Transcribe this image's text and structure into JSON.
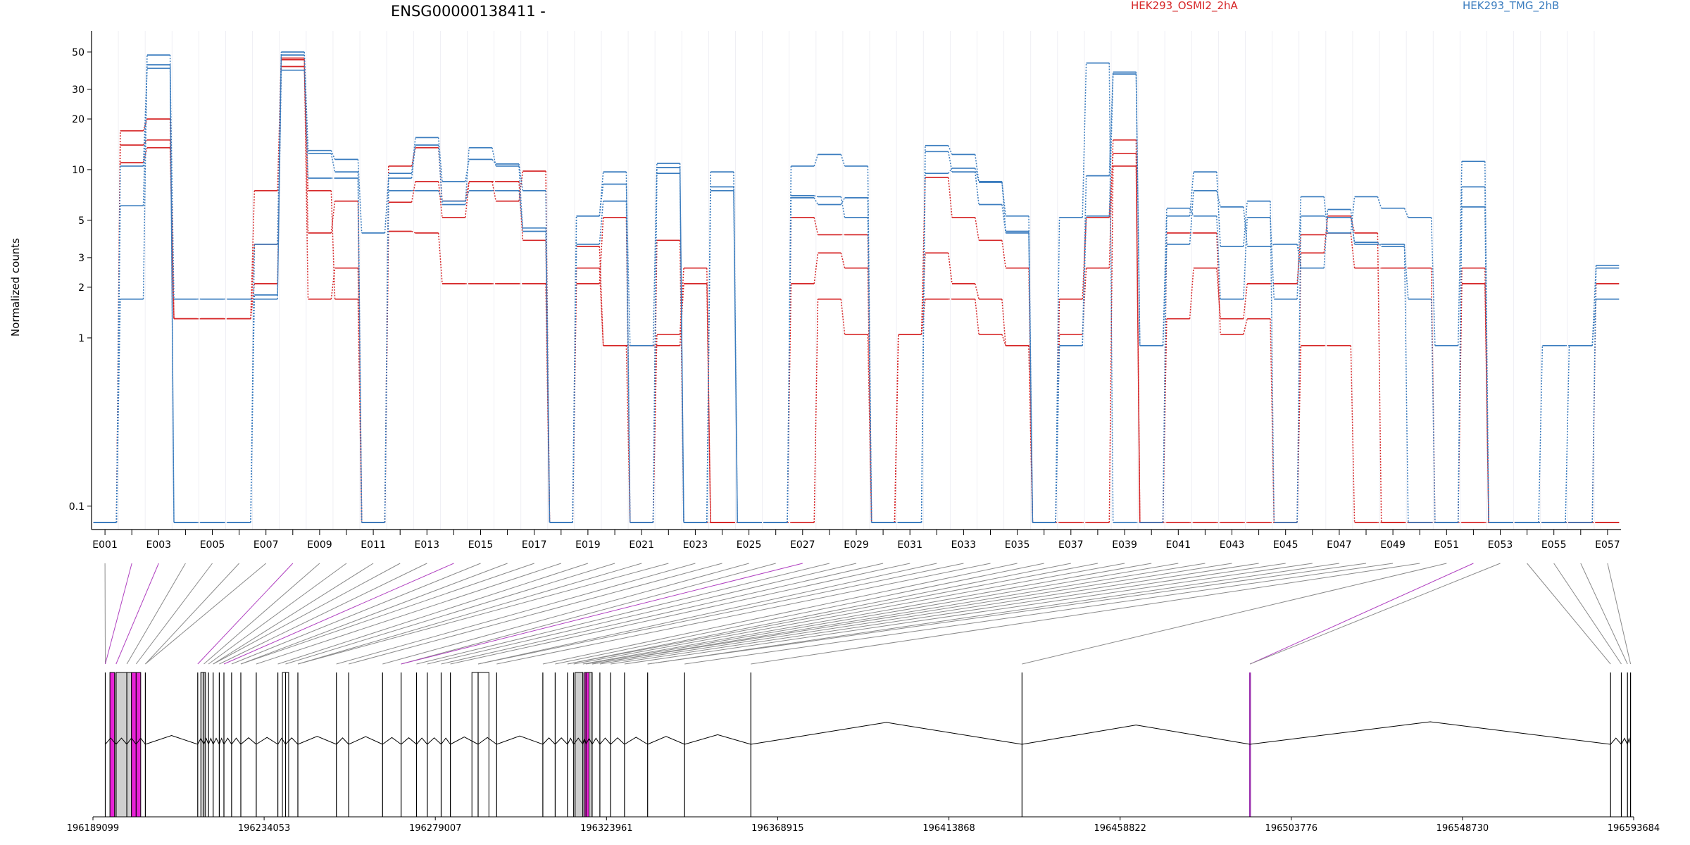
{
  "title": "ENSG00000138411 -",
  "legend": [
    {
      "label": "HEK293_OSMI2_2hA",
      "color": "#d62728"
    },
    {
      "label": "HEK293_TMG_2hB",
      "color": "#3b7dbf"
    }
  ],
  "chart_data": {
    "type": "line",
    "title": "ENSG00000138411 -",
    "ylabel": "Normalized counts",
    "yscale": "log",
    "ylim": [
      0.08,
      55
    ],
    "yticks": [
      0.1,
      1,
      2,
      3,
      5,
      10,
      20,
      30,
      50
    ],
    "ytick_labels": [
      "0.1",
      "1",
      "2",
      "3",
      "5",
      "10",
      "20",
      "30",
      "50"
    ],
    "categories": [
      "E001",
      "E002",
      "E003",
      "E004",
      "E005",
      "E006",
      "E007",
      "E008",
      "E009",
      "E010",
      "E011",
      "E012",
      "E013",
      "E014",
      "E015",
      "E016",
      "E017",
      "E018",
      "E019",
      "E020",
      "E021",
      "E022",
      "E023",
      "E024",
      "E025",
      "E026",
      "E027",
      "E028",
      "E029",
      "E030",
      "E031",
      "E032",
      "E033",
      "E034",
      "E035",
      "E036",
      "E037",
      "E038",
      "E039",
      "E040",
      "E041",
      "E042",
      "E043",
      "E044",
      "E045",
      "E046",
      "E047",
      "E048",
      "E049",
      "E050",
      "E051",
      "E052",
      "E053",
      "E054",
      "E055",
      "E056",
      "E057"
    ],
    "xtick_labels": [
      "E001",
      "E003",
      "E005",
      "E007",
      "E009",
      "E011",
      "E013",
      "E015",
      "E017",
      "E019",
      "E021",
      "E023",
      "E025",
      "E027",
      "E029",
      "E031",
      "E033",
      "E035",
      "E037",
      "E039",
      "E041",
      "E043",
      "E045",
      "E047",
      "E049",
      "E051",
      "E053",
      "E055",
      "E057"
    ],
    "series": [
      {
        "group": "HEK293_OSMI2_2hA",
        "color": "#d62728",
        "values": [
          0.08,
          17,
          20,
          1.3,
          1.3,
          1.3,
          7.5,
          46,
          4.2,
          6.5,
          0.08,
          4.3,
          4.2,
          2.1,
          2.1,
          2.1,
          2.1,
          0.08,
          2.6,
          0.9,
          0.08,
          3.8,
          0.08,
          0.08,
          0.08,
          0.08,
          5.2,
          4.1,
          4.1,
          0.08,
          1.05,
          9,
          5.2,
          3.8,
          2.6,
          0.08,
          1.05,
          2.6,
          15,
          0.08,
          1.3,
          2.6,
          1.3,
          2.1,
          2.1,
          4.1,
          4.2,
          2.6,
          2.6,
          2.6,
          0.08,
          2.1,
          0.08,
          0.08,
          0.08,
          0.08,
          0.08
        ]
      },
      {
        "group": "HEK293_OSMI2_2hA",
        "color": "#d62728",
        "values": [
          0.08,
          14,
          15,
          1.3,
          1.3,
          1.3,
          2.1,
          41,
          7.5,
          1.7,
          0.08,
          6.4,
          8.5,
          5.2,
          8.5,
          6.5,
          9.8,
          0.08,
          2.1,
          5.2,
          0.08,
          1.05,
          2.6,
          0.08,
          0.08,
          0.08,
          2.1,
          3.2,
          2.6,
          0.08,
          1.05,
          3.2,
          2.1,
          1.7,
          0.9,
          0.08,
          1.7,
          5.2,
          12.5,
          0.08,
          4.2,
          4.2,
          1.05,
          1.3,
          0.08,
          3.2,
          5.3,
          4.2,
          0.08,
          0.08,
          0.08,
          2.6,
          0.08,
          0.08,
          0.08,
          0.08,
          0.08
        ]
      },
      {
        "group": "HEK293_OSMI2_2hA",
        "color": "#d62728",
        "values": [
          0.08,
          11,
          13.5,
          1.3,
          1.3,
          1.3,
          3.6,
          45,
          1.7,
          2.6,
          0.08,
          10.5,
          13.5,
          6.5,
          8.5,
          8.5,
          3.8,
          0.08,
          3.5,
          0.9,
          0.9,
          0.9,
          2.1,
          0.08,
          0.08,
          0.08,
          0.08,
          1.7,
          1.05,
          0.08,
          1.05,
          1.7,
          1.7,
          1.05,
          0.9,
          0.08,
          0.08,
          0.08,
          10.5,
          0.08,
          0.08,
          0.08,
          0.08,
          0.08,
          0.08,
          0.9,
          0.9,
          0.08,
          0.08,
          0.08,
          0.08,
          0.08,
          0.08,
          0.08,
          0.08,
          0.08,
          2.1
        ]
      },
      {
        "group": "HEK293_TMG_2hB",
        "color": "#3b7dbf",
        "values": [
          0.08,
          1.7,
          48,
          0.08,
          0.08,
          0.08,
          3.6,
          50,
          12.5,
          9.7,
          0.08,
          9.5,
          15.5,
          8.5,
          11.5,
          10.8,
          7.5,
          0.08,
          5.3,
          9.7,
          0.08,
          10.3,
          0.08,
          7.5,
          0.08,
          0.08,
          10.5,
          12.3,
          10.5,
          0.08,
          0.08,
          13.9,
          12.3,
          8.4,
          5.3,
          0.08,
          5.2,
          43,
          0.08,
          0.08,
          5.3,
          9.7,
          3.5,
          6.5,
          0.08,
          5.3,
          5.2,
          3.7,
          3.5,
          1.7,
          0.08,
          7.9,
          0.08,
          0.08,
          0.08,
          0.9,
          2.7
        ]
      },
      {
        "group": "HEK293_TMG_2hB",
        "color": "#3b7dbf",
        "values": [
          0.08,
          10.5,
          40,
          1.7,
          1.7,
          1.7,
          1.7,
          48,
          13,
          11.5,
          4.2,
          8.9,
          14,
          6.2,
          13.5,
          10.5,
          4.3,
          0.08,
          5.3,
          8.2,
          0.9,
          10.9,
          0.08,
          9.7,
          0.08,
          0.08,
          6.8,
          6.2,
          6.8,
          0.08,
          0.08,
          12.8,
          9.7,
          6.2,
          4.2,
          0.08,
          0.9,
          5.3,
          37,
          0.9,
          5.9,
          5.3,
          1.7,
          5.2,
          1.7,
          6.9,
          4.2,
          6.9,
          5.9,
          5.2,
          0.9,
          11.2,
          0.08,
          0.08,
          0.9,
          0.9,
          1.7
        ]
      },
      {
        "group": "HEK293_TMG_2hB",
        "color": "#3b7dbf",
        "values": [
          0.08,
          6.1,
          42,
          0.08,
          0.08,
          0.08,
          1.8,
          39,
          8.9,
          8.9,
          0.08,
          7.5,
          7.5,
          6.5,
          7.5,
          7.5,
          4.5,
          0.08,
          3.6,
          6.5,
          0.08,
          9.5,
          0.08,
          7.9,
          0.08,
          0.08,
          7,
          6.9,
          5.2,
          0.08,
          0.08,
          9.5,
          10.2,
          8.5,
          4.3,
          0.08,
          0.9,
          9.2,
          38,
          0.9,
          3.6,
          7.5,
          6,
          3.5,
          3.6,
          2.6,
          5.8,
          3.6,
          3.6,
          0.08,
          0.08,
          6,
          0.08,
          0.08,
          0.08,
          0.08,
          2.6
        ]
      }
    ],
    "genomic_axis": {
      "tick_labels": [
        "196189099",
        "196234053",
        "196279007",
        "196323961",
        "196368915",
        "196413868",
        "196458822",
        "196503776",
        "196548730",
        "196593684"
      ]
    }
  }
}
